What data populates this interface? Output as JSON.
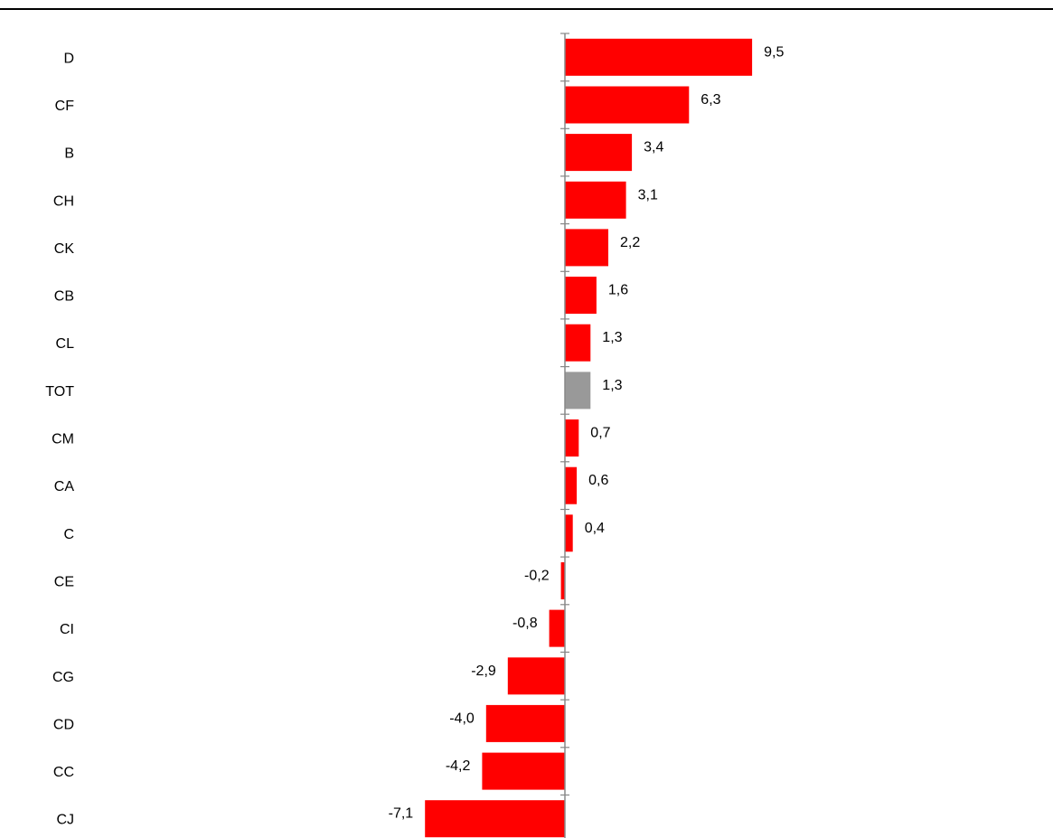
{
  "chart_data": {
    "type": "bar",
    "orientation": "horizontal",
    "title": "",
    "xlabel": "",
    "ylabel": "",
    "categories": [
      "D",
      "CF",
      "B",
      "CH",
      "CK",
      "CB",
      "CL",
      "TOT",
      "CM",
      "CA",
      "C",
      "CE",
      "CI",
      "CG",
      "CD",
      "CC",
      "CJ"
    ],
    "values": [
      9.5,
      6.3,
      3.4,
      3.1,
      2.2,
      1.6,
      1.3,
      1.3,
      0.7,
      0.6,
      0.4,
      -0.2,
      -0.8,
      -2.9,
      -4.0,
      -4.2,
      -7.1
    ],
    "value_labels": [
      "9,5",
      "6,3",
      "3,4",
      "3,1",
      "2,2",
      "1,6",
      "1,3",
      "1,3",
      "0,7",
      "0,6",
      "0,4",
      "-0,2",
      "-0,8",
      "-2,9",
      "-4,0",
      "-4,2",
      "-7,1"
    ],
    "xlim": [
      -7.1,
      9.5
    ],
    "grid": false,
    "legend": "none",
    "bar_color": "#ff0000",
    "highlight_category": "TOT",
    "highlight_color": "#999999",
    "axis_color": "#888888"
  }
}
